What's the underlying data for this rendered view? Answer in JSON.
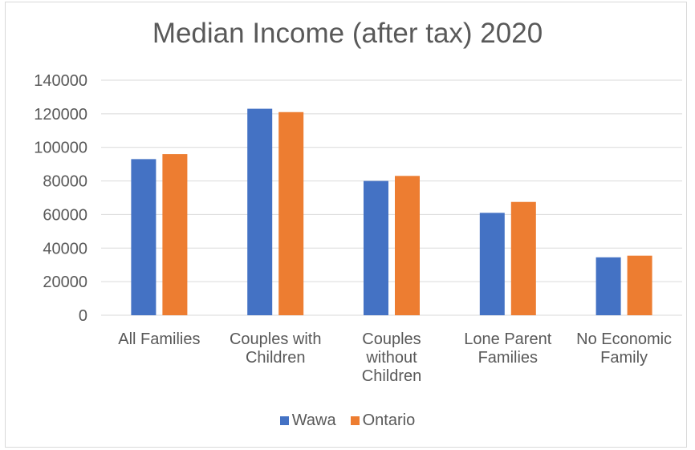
{
  "chart_data": {
    "type": "bar",
    "title": "Median Income (after tax) 2020",
    "xlabel": "",
    "ylabel": "",
    "categories": [
      [
        "All Families"
      ],
      [
        "Couples with",
        "Children"
      ],
      [
        "Couples",
        "without",
        "Children"
      ],
      [
        "Lone Parent",
        "Families"
      ],
      [
        "No Economic",
        "Family"
      ]
    ],
    "series": [
      {
        "name": "Wawa",
        "color": "#4472c4",
        "values": [
          93000,
          123000,
          80000,
          61000,
          34500
        ]
      },
      {
        "name": "Ontario",
        "color": "#ed7d31",
        "values": [
          96000,
          121000,
          83000,
          67500,
          35500
        ]
      }
    ],
    "ylim": [
      0,
      140000
    ],
    "yticks": [
      0,
      20000,
      40000,
      60000,
      80000,
      100000,
      120000,
      140000
    ],
    "grid": true,
    "legend_position": "bottom"
  }
}
